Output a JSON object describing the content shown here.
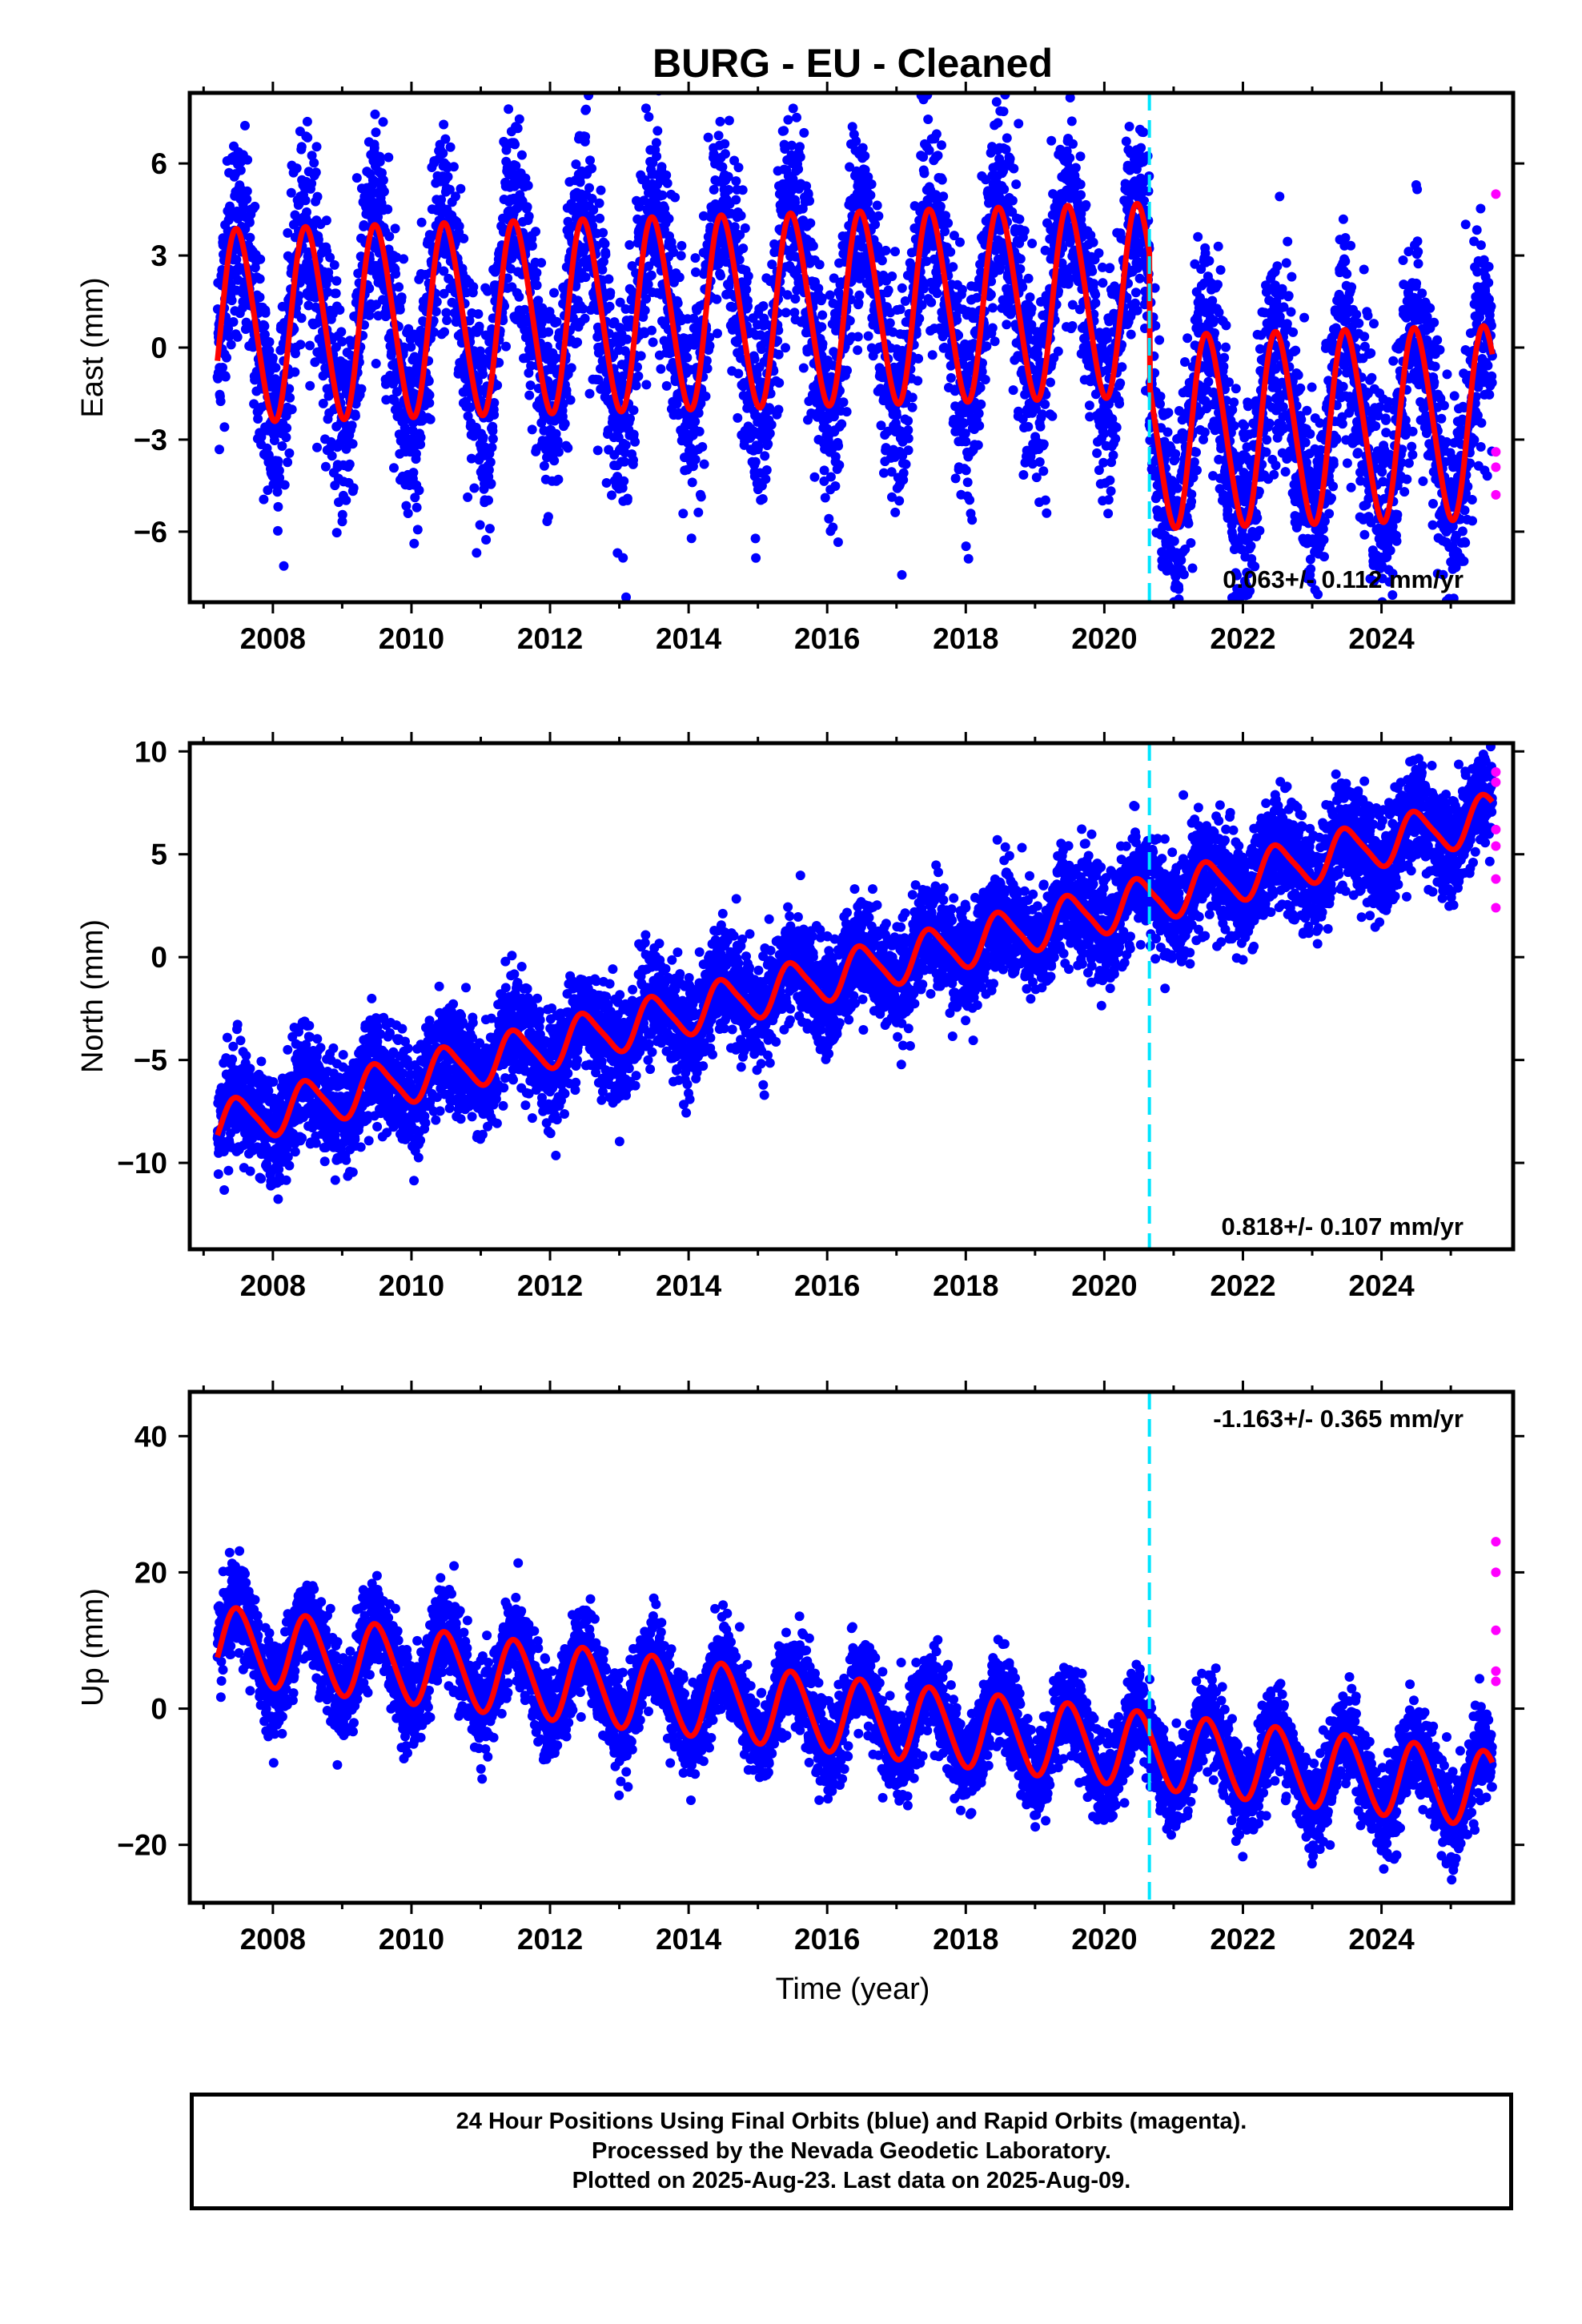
{
  "chart_data": {
    "type": "scatter",
    "title": "BURG  - EU - Cleaned",
    "xlabel": "Time (year)",
    "xlim": [
      2006.8,
      2025.9
    ],
    "x_ticks": [
      2008,
      2010,
      2012,
      2014,
      2016,
      2018,
      2020,
      2022,
      2024
    ],
    "x_tick_labels": [
      "2008",
      "2010",
      "2012",
      "2014",
      "2016",
      "2018",
      "2020",
      "2022",
      "2024"
    ],
    "data_start": 2007.2,
    "data_end": 2025.6,
    "equipment_change": 2020.65,
    "colors": {
      "final_orbits": "#0000ff",
      "rapid_orbits": "#ff00ff",
      "model": "#ff0000",
      "offset_line": "#00e5ff"
    },
    "panels": [
      {
        "name": "east",
        "ylabel": "East (mm)",
        "ylim": [
          -8.3,
          8.3
        ],
        "y_ticks": [
          -6,
          -3,
          0,
          3,
          6
        ],
        "y_tick_labels": [
          "−6",
          "−3",
          "0",
          "3",
          "6"
        ],
        "velocity_label": "0.063+/- 0.112 mm/yr",
        "label_position": "bottom-right",
        "rate": 0.063,
        "offset_after_change": -4.3,
        "intercept_2007": 0.7,
        "annual_amplitude": 3.1,
        "semiannual_amplitude": 0.3,
        "scatter": 1.7,
        "rapid_points": [
          5.0,
          -3.4,
          -3.9,
          -4.8
        ]
      },
      {
        "name": "north",
        "ylabel": "North (mm)",
        "ylim": [
          -14.2,
          10.4
        ],
        "y_ticks": [
          -10,
          -5,
          0,
          5,
          10
        ],
        "y_tick_labels": [
          "−10",
          "−5",
          "0",
          "5",
          "10"
        ],
        "velocity_label": "0.818+/- 0.107 mm/yr",
        "label_position": "bottom-right",
        "rate": 0.818,
        "offset_after_change": 0.0,
        "intercept_2007": -8.2,
        "annual_amplitude": 1.1,
        "semiannual_amplitude": 0.2,
        "scatter": 1.3,
        "rapid_points": [
          9.0,
          8.5,
          6.2,
          5.4,
          3.8,
          2.4
        ]
      },
      {
        "name": "up",
        "ylabel": "Up (mm)",
        "ylim": [
          -28.5,
          46.5
        ],
        "y_ticks": [
          -20,
          0,
          20,
          40
        ],
        "y_tick_labels": [
          "−20",
          "0",
          "20",
          "40"
        ],
        "velocity_label": "-1.163+/- 0.365 mm/yr",
        "label_position": "top-right",
        "rate": -1.163,
        "offset_after_change": 0.0,
        "intercept_2007": 9.5,
        "annual_amplitude": 5.5,
        "semiannual_amplitude": 0.5,
        "scatter": 3.3,
        "rapid_points": [
          24.5,
          20.0,
          11.5,
          5.5,
          4.0
        ]
      }
    ]
  },
  "caption": {
    "line1": "24 Hour Positions Using Final Orbits (blue) and Rapid Orbits (magenta).",
    "line2": "Processed by the Nevada Geodetic Laboratory.",
    "line3": "Plotted on 2025-Aug-23. Last data on 2025-Aug-09."
  }
}
